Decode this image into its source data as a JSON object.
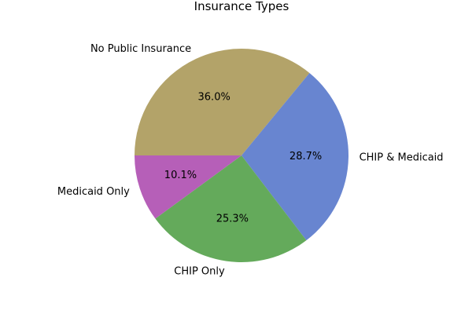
{
  "chart_data": {
    "type": "pie",
    "title": "Insurance Types",
    "start_angle_deg": 180,
    "direction": "clockwise",
    "slices": [
      {
        "label": "No Public Insurance",
        "value": 36.0,
        "pct_label": "36.0%",
        "color": "#b3a369"
      },
      {
        "label": "CHIP & Medicaid",
        "value": 28.7,
        "pct_label": "28.7%",
        "color": "#6885d0"
      },
      {
        "label": "CHIP Only",
        "value": 25.3,
        "pct_label": "25.3%",
        "color": "#64aa5b"
      },
      {
        "label": "Medicaid Only",
        "value": 10.1,
        "pct_label": "10.1%",
        "color": "#b65fb8"
      }
    ]
  }
}
